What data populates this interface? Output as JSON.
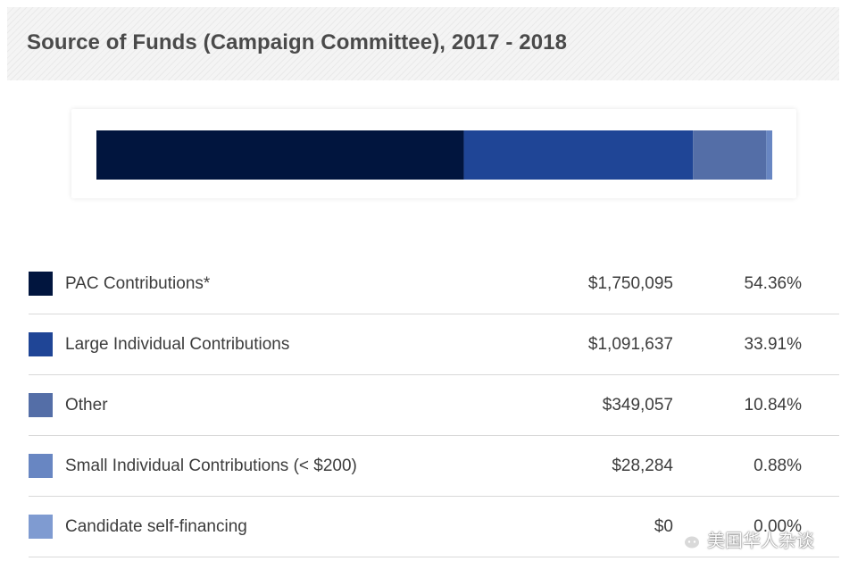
{
  "title": "Source of Funds (Campaign Committee), 2017 - 2018",
  "chart_data": {
    "type": "bar",
    "orientation": "horizontal-stacked",
    "title": "Source of Funds (Campaign Committee), 2017 - 2018",
    "categories": [
      "PAC Contributions*",
      "Large Individual Contributions",
      "Other",
      "Small Individual Contributions (< $200)",
      "Candidate self-financing"
    ],
    "series": [
      {
        "amount": "$1,750,095",
        "percent": "54.36%",
        "value": 54.36,
        "color": "#01153e"
      },
      {
        "amount": "$1,091,637",
        "percent": "33.91%",
        "value": 33.91,
        "color": "#1f4596"
      },
      {
        "amount": "$349,057",
        "percent": "10.84%",
        "value": 10.84,
        "color": "#546ea7"
      },
      {
        "amount": "$28,284",
        "percent": "0.88%",
        "value": 0.88,
        "color": "#6886c2"
      },
      {
        "amount": "$0",
        "percent": "0.00%",
        "value": 0.0,
        "color": "#7f9bd1"
      }
    ]
  },
  "watermark": {
    "text": "美国华人杂谈",
    "icon": "wechat-icon"
  }
}
